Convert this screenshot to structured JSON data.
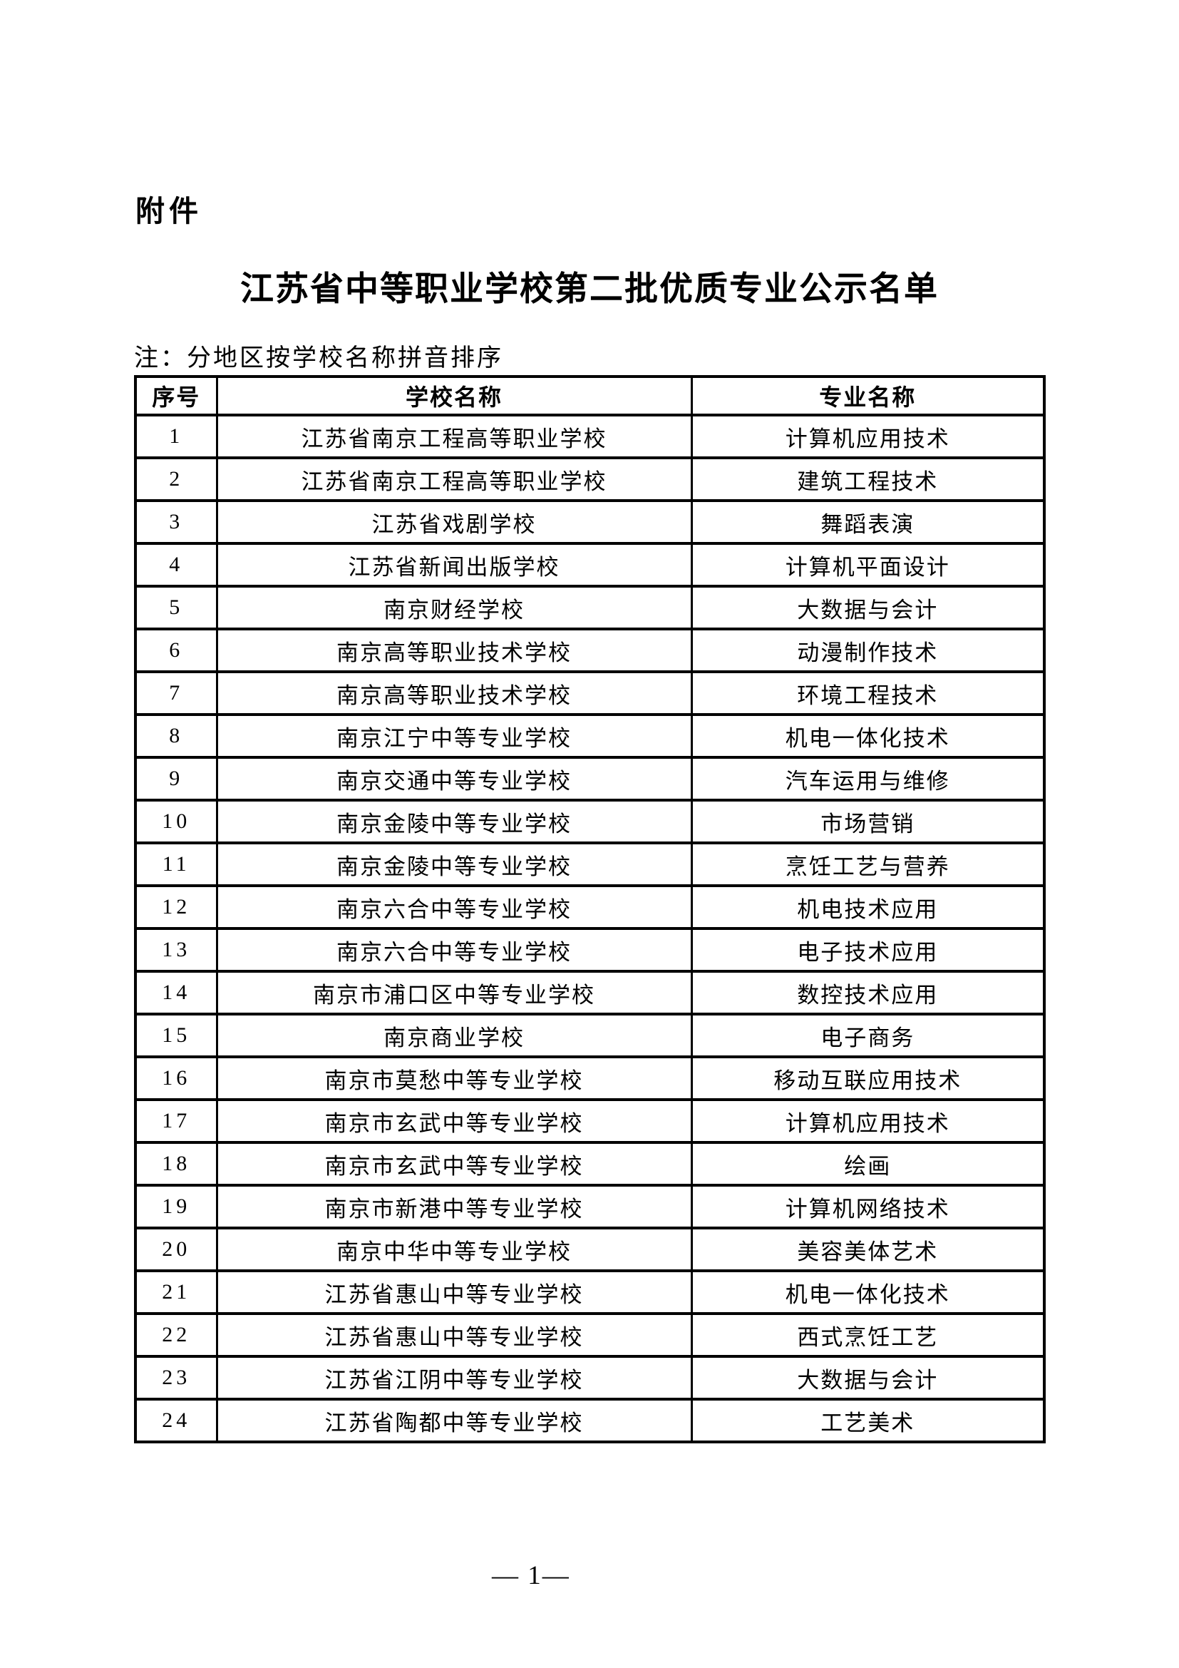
{
  "document": {
    "attachment_label": "附件",
    "title": "江苏省中等职业学校第二批优质专业公示名单",
    "note": "注：分地区按学校名称拼音排序"
  },
  "table": {
    "headers": [
      "序号",
      "学校名称",
      "专业名称"
    ],
    "rows": [
      {
        "no": "1",
        "school": "江苏省南京工程高等职业学校",
        "major": "计算机应用技术"
      },
      {
        "no": "2",
        "school": "江苏省南京工程高等职业学校",
        "major": "建筑工程技术"
      },
      {
        "no": "3",
        "school": "江苏省戏剧学校",
        "major": "舞蹈表演"
      },
      {
        "no": "4",
        "school": "江苏省新闻出版学校",
        "major": "计算机平面设计"
      },
      {
        "no": "5",
        "school": "南京财经学校",
        "major": "大数据与会计"
      },
      {
        "no": "6",
        "school": "南京高等职业技术学校",
        "major": "动漫制作技术"
      },
      {
        "no": "7",
        "school": "南京高等职业技术学校",
        "major": "环境工程技术"
      },
      {
        "no": "8",
        "school": "南京江宁中等专业学校",
        "major": "机电一体化技术"
      },
      {
        "no": "9",
        "school": "南京交通中等专业学校",
        "major": "汽车运用与维修"
      },
      {
        "no": "10",
        "school": "南京金陵中等专业学校",
        "major": "市场营销"
      },
      {
        "no": "11",
        "school": "南京金陵中等专业学校",
        "major": "烹饪工艺与营养"
      },
      {
        "no": "12",
        "school": "南京六合中等专业学校",
        "major": "机电技术应用"
      },
      {
        "no": "13",
        "school": "南京六合中等专业学校",
        "major": "电子技术应用"
      },
      {
        "no": "14",
        "school": "南京市浦口区中等专业学校",
        "major": "数控技术应用"
      },
      {
        "no": "15",
        "school": "南京商业学校",
        "major": "电子商务"
      },
      {
        "no": "16",
        "school": "南京市莫愁中等专业学校",
        "major": "移动互联应用技术"
      },
      {
        "no": "17",
        "school": "南京市玄武中等专业学校",
        "major": "计算机应用技术"
      },
      {
        "no": "18",
        "school": "南京市玄武中等专业学校",
        "major": "绘画"
      },
      {
        "no": "19",
        "school": "南京市新港中等专业学校",
        "major": "计算机网络技术"
      },
      {
        "no": "20",
        "school": "南京中华中等专业学校",
        "major": "美容美体艺术"
      },
      {
        "no": "21",
        "school": "江苏省惠山中等专业学校",
        "major": "机电一体化技术"
      },
      {
        "no": "22",
        "school": "江苏省惠山中等专业学校",
        "major": "西式烹饪工艺"
      },
      {
        "no": "23",
        "school": "江苏省江阴中等专业学校",
        "major": "大数据与会计"
      },
      {
        "no": "24",
        "school": "江苏省陶都中等专业学校",
        "major": "工艺美术"
      }
    ]
  },
  "footer": {
    "page_number": "— 1—"
  }
}
